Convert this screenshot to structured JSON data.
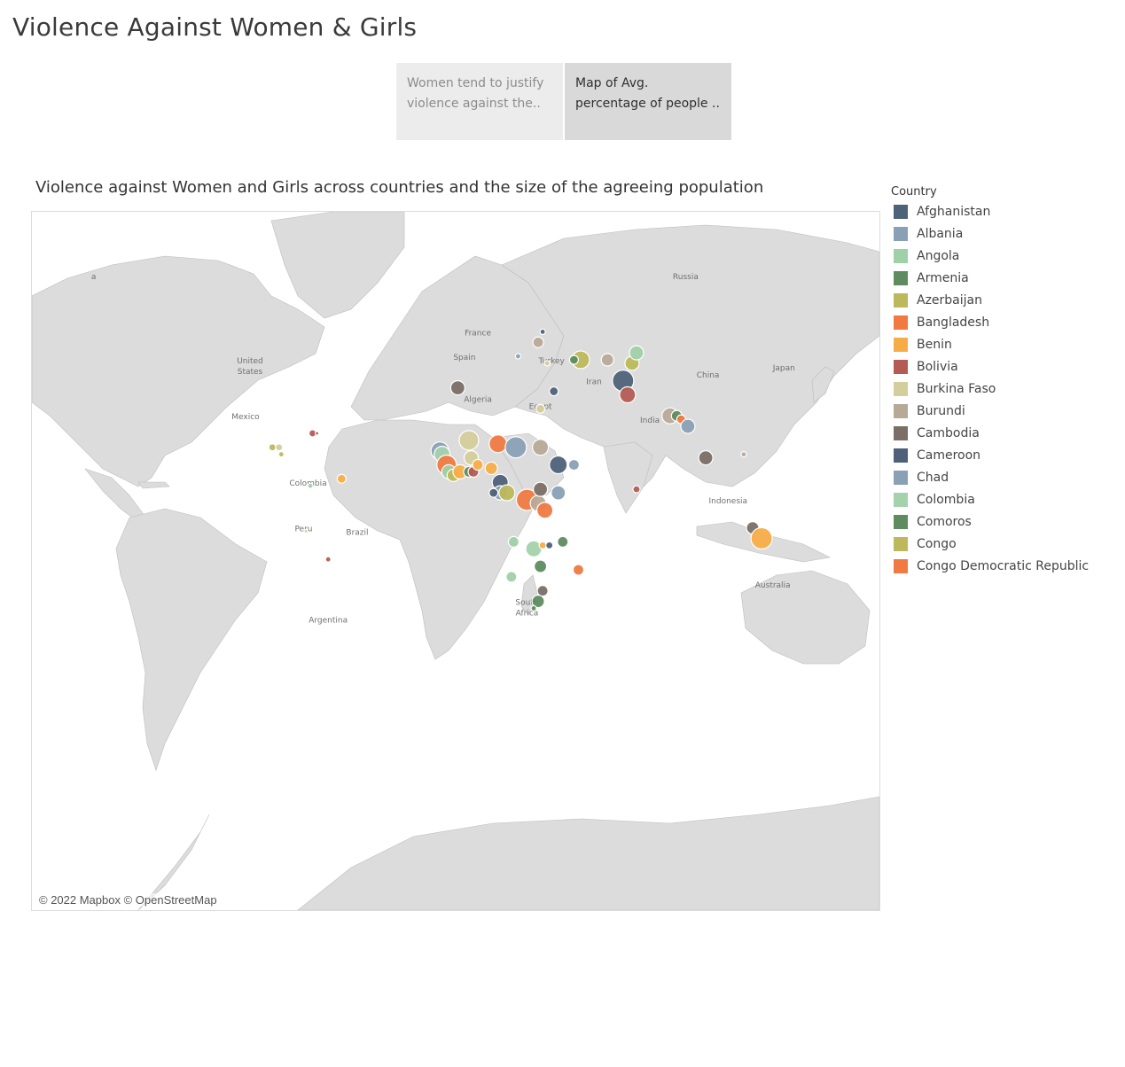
{
  "dashboard": {
    "title": "Violence Against Women & Girls"
  },
  "story_points": [
    {
      "line1": "Women tend to justify",
      "line2": "violence against the..",
      "active": false
    },
    {
      "line1": "Map of Avg.",
      "line2": "percentage of people ..",
      "active": true
    }
  ],
  "viz": {
    "title": "Violence against Women and Girls across countries and the size of the agreeing population",
    "attribution": "© 2022 Mapbox © OpenStreetMap"
  },
  "map_labels": [
    {
      "text": "Russia",
      "lon": 95,
      "lat": 63
    },
    {
      "text": "China",
      "lon": 105,
      "lat": 35
    },
    {
      "text": "Japan",
      "lon": 139,
      "lat": 37
    },
    {
      "text": "India",
      "lon": 79,
      "lat": 22
    },
    {
      "text": "Iran",
      "lon": 54,
      "lat": 33
    },
    {
      "text": "Turkey",
      "lon": 35,
      "lat": 39
    },
    {
      "text": "Egypt",
      "lon": 30,
      "lat": 26
    },
    {
      "text": "Algeria",
      "lon": 2,
      "lat": 28
    },
    {
      "text": "France",
      "lon": 2,
      "lat": 47
    },
    {
      "text": "Spain",
      "lon": -4,
      "lat": 40
    },
    {
      "text": "United",
      "lon": -100,
      "lat": 39
    },
    {
      "text": "States",
      "lon": -100,
      "lat": 36
    },
    {
      "text": "Mexico",
      "lon": -102,
      "lat": 23
    },
    {
      "text": "Colombia",
      "lon": -74,
      "lat": 4
    },
    {
      "text": "Peru",
      "lon": -76,
      "lat": -9
    },
    {
      "text": "Brazil",
      "lon": -52,
      "lat": -10
    },
    {
      "text": "Argentina",
      "lon": -65,
      "lat": -35
    },
    {
      "text": "South",
      "lon": 24,
      "lat": -30
    },
    {
      "text": "Africa",
      "lon": 24,
      "lat": -33
    },
    {
      "text": "Indonesia",
      "lon": 114,
      "lat": -1
    },
    {
      "text": "Australia",
      "lon": 134,
      "lat": -25
    },
    {
      "text": "a",
      "lon": -170,
      "lat": 63
    }
  ],
  "legend": {
    "title": "Country",
    "items": [
      {
        "label": "Afghanistan",
        "color": "#4e6279"
      },
      {
        "label": "Albania",
        "color": "#8aa0b5"
      },
      {
        "label": "Angola",
        "color": "#9fd0a8"
      },
      {
        "label": "Armenia",
        "color": "#5e8c5f"
      },
      {
        "label": "Azerbaijan",
        "color": "#bcb85b"
      },
      {
        "label": "Bangladesh",
        "color": "#f07a42"
      },
      {
        "label": "Benin",
        "color": "#f7ad47"
      },
      {
        "label": "Bolivia",
        "color": "#b45c53"
      },
      {
        "label": "Burkina Faso",
        "color": "#d4cd9c"
      },
      {
        "label": "Burundi",
        "color": "#b8a997"
      },
      {
        "label": "Cambodia",
        "color": "#7a6e66"
      },
      {
        "label": "Cameroon",
        "color": "#4f6078"
      },
      {
        "label": "Chad",
        "color": "#8aa0b5"
      },
      {
        "label": "Colombia",
        "color": "#a4d2ab"
      },
      {
        "label": "Comoros",
        "color": "#5e8c5f"
      },
      {
        "label": "Congo",
        "color": "#bcb85b"
      },
      {
        "label": "Congo Democratic Republic",
        "color": "#f07a42"
      }
    ]
  },
  "points": [
    {
      "lon": 67,
      "lat": 34,
      "r": 12,
      "color": "#4e6279"
    },
    {
      "lon": 69,
      "lat": 30,
      "r": 9,
      "color": "#b45c53"
    },
    {
      "lon": 71,
      "lat": 39,
      "r": 8,
      "color": "#bcb85b"
    },
    {
      "lon": 73,
      "lat": 42,
      "r": 8,
      "color": "#9fd0a8"
    },
    {
      "lon": 60,
      "lat": 40,
      "r": 7,
      "color": "#b8a997"
    },
    {
      "lon": 48,
      "lat": 40,
      "r": 10,
      "color": "#bcb85b"
    },
    {
      "lon": 45,
      "lat": 40,
      "r": 5,
      "color": "#5e8c5f"
    },
    {
      "lon": 88,
      "lat": 24,
      "r": 9,
      "color": "#b8a997"
    },
    {
      "lon": 91,
      "lat": 24,
      "r": 6,
      "color": "#5e8c5f"
    },
    {
      "lon": 93,
      "lat": 23,
      "r": 5,
      "color": "#f07a42"
    },
    {
      "lon": 96,
      "lat": 21,
      "r": 8,
      "color": "#8aa0b5"
    },
    {
      "lon": 104,
      "lat": 12,
      "r": 8,
      "color": "#7a6e66"
    },
    {
      "lon": 121,
      "lat": 13,
      "r": 3,
      "color": "#b8a997"
    },
    {
      "lon": 125,
      "lat": -8,
      "r": 7,
      "color": "#7a6e66"
    },
    {
      "lon": 129,
      "lat": -11,
      "r": 12,
      "color": "#f7ad47"
    },
    {
      "lon": 73,
      "lat": 3,
      "r": 4,
      "color": "#b45c53"
    },
    {
      "lon": 31,
      "lat": 48,
      "r": 3,
      "color": "#4e6279"
    },
    {
      "lon": 29,
      "lat": 45,
      "r": 6,
      "color": "#b8a997"
    },
    {
      "lon": 20,
      "lat": 41,
      "r": 3,
      "color": "#8aa0b5"
    },
    {
      "lon": 33,
      "lat": 39,
      "r": 3,
      "color": "#d4cd9c"
    },
    {
      "lon": 36,
      "lat": 31,
      "r": 5,
      "color": "#4e6279"
    },
    {
      "lon": 30,
      "lat": 26,
      "r": 5,
      "color": "#d4cd9c"
    },
    {
      "lon": -7,
      "lat": 32,
      "r": 8,
      "color": "#7a6e66"
    },
    {
      "lon": -15,
      "lat": 14,
      "r": 10,
      "color": "#8aa0b5"
    },
    {
      "lon": -14,
      "lat": 13,
      "r": 9,
      "color": "#a4d2ab"
    },
    {
      "lon": -12,
      "lat": 10,
      "r": 11,
      "color": "#f07a42"
    },
    {
      "lon": -11,
      "lat": 8,
      "r": 8,
      "color": "#9fd0a8"
    },
    {
      "lon": -9,
      "lat": 7,
      "r": 7,
      "color": "#bcb85b"
    },
    {
      "lon": -6,
      "lat": 8,
      "r": 8,
      "color": "#f7ad47"
    },
    {
      "lon": -2,
      "lat": 8,
      "r": 6,
      "color": "#5e8c5f"
    },
    {
      "lon": 0,
      "lat": 8,
      "r": 6,
      "color": "#b45c53"
    },
    {
      "lon": -2,
      "lat": 17,
      "r": 11,
      "color": "#d4cd9c"
    },
    {
      "lon": -1,
      "lat": 12,
      "r": 8,
      "color": "#d4cd9c"
    },
    {
      "lon": 2,
      "lat": 10,
      "r": 6,
      "color": "#f7ad47"
    },
    {
      "lon": 8,
      "lat": 9,
      "r": 7,
      "color": "#f7ad47"
    },
    {
      "lon": 11,
      "lat": 16,
      "r": 10,
      "color": "#f07a42"
    },
    {
      "lon": 19,
      "lat": 15,
      "r": 12,
      "color": "#8aa0b5"
    },
    {
      "lon": 12,
      "lat": 5,
      "r": 9,
      "color": "#4f6078"
    },
    {
      "lon": 12,
      "lat": 2,
      "r": 8,
      "color": "#8aa0b5"
    },
    {
      "lon": 9,
      "lat": 2,
      "r": 5,
      "color": "#4f6078"
    },
    {
      "lon": 15,
      "lat": 2,
      "r": 9,
      "color": "#bcb85b"
    },
    {
      "lon": 24,
      "lat": 0,
      "r": 12,
      "color": "#f07a42"
    },
    {
      "lon": 29,
      "lat": -1,
      "r": 9,
      "color": "#b8a997"
    },
    {
      "lon": 30,
      "lat": 3,
      "r": 8,
      "color": "#7a6e66"
    },
    {
      "lon": 32,
      "lat": -3,
      "r": 9,
      "color": "#f07a42"
    },
    {
      "lon": 38,
      "lat": 2,
      "r": 8,
      "color": "#8aa0b5"
    },
    {
      "lon": 38,
      "lat": 10,
      "r": 10,
      "color": "#4e6279"
    },
    {
      "lon": 30,
      "lat": 15,
      "r": 9,
      "color": "#b8a997"
    },
    {
      "lon": 45,
      "lat": 10,
      "r": 6,
      "color": "#8aa0b5"
    },
    {
      "lon": 18,
      "lat": -12,
      "r": 6,
      "color": "#9fd0a8"
    },
    {
      "lon": 17,
      "lat": -22,
      "r": 6,
      "color": "#9fd0a8"
    },
    {
      "lon": 27,
      "lat": -14,
      "r": 9,
      "color": "#a4d2ab"
    },
    {
      "lon": 31,
      "lat": -13,
      "r": 4,
      "color": "#f7ad47"
    },
    {
      "lon": 34,
      "lat": -13,
      "r": 4,
      "color": "#4f6078"
    },
    {
      "lon": 30,
      "lat": -19,
      "r": 7,
      "color": "#5e8c5f"
    },
    {
      "lon": 40,
      "lat": -12,
      "r": 6,
      "color": "#5e8c5f"
    },
    {
      "lon": 47,
      "lat": -20,
      "r": 6,
      "color": "#f07a42"
    },
    {
      "lon": 31,
      "lat": -26,
      "r": 6,
      "color": "#7a6e66"
    },
    {
      "lon": 29,
      "lat": -29,
      "r": 7,
      "color": "#5e8c5f"
    },
    {
      "lon": 27,
      "lat": -31,
      "r": 3,
      "color": "#5e8c5f"
    },
    {
      "lon": -72,
      "lat": 19,
      "r": 4,
      "color": "#b45c53"
    },
    {
      "lon": -70,
      "lat": 19,
      "r": 2,
      "color": "#b45c53"
    },
    {
      "lon": -90,
      "lat": 15,
      "r": 4,
      "color": "#bcb85b"
    },
    {
      "lon": -87,
      "lat": 15,
      "r": 4,
      "color": "#d4cd9c"
    },
    {
      "lon": -86,
      "lat": 13,
      "r": 3,
      "color": "#bcb85b"
    },
    {
      "lon": -73,
      "lat": 4,
      "r": 3,
      "color": "#a4d2ab"
    },
    {
      "lon": -59,
      "lat": 6,
      "r": 5,
      "color": "#f7ad47"
    },
    {
      "lon": -75,
      "lat": -9,
      "r": 2,
      "color": "#d4cd9c"
    },
    {
      "lon": -65,
      "lat": -17,
      "r": 3,
      "color": "#b45c53"
    }
  ]
}
